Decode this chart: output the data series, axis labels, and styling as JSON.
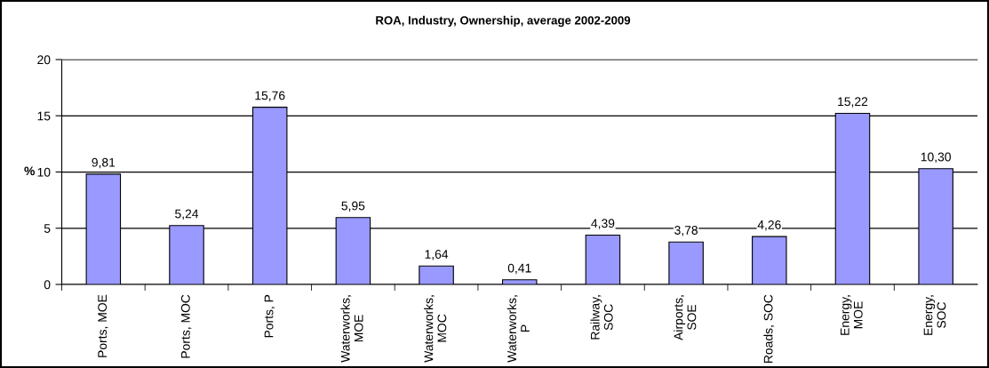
{
  "chart_data": {
    "type": "bar",
    "title": "ROA, Industry, Ownership, average 2002-2009",
    "ylabel": "%",
    "categories": [
      "Ports, MOE",
      "Ports, MOC",
      "Ports, P",
      "Waterworks,\nMOE",
      "Waterworks,\nMOC",
      "Waterworks,\nP",
      "Railway,\nSOC",
      "Airports,\nSOE",
      "Roads, SOC",
      "Energy,\nMOE",
      "Energy,\nSOC"
    ],
    "values": [
      9.81,
      5.24,
      15.76,
      5.95,
      1.64,
      0.41,
      4.39,
      3.78,
      4.26,
      15.22,
      10.3
    ],
    "value_labels": [
      "9,81",
      "5,24",
      "15,76",
      "5,95",
      "1,64",
      "0,41",
      "4,39",
      "3,78",
      "4,26",
      "15,22",
      "10,30"
    ],
    "color": "#9999ff",
    "ylim": [
      0,
      20
    ],
    "yticks": [
      0,
      5,
      10,
      15,
      20
    ],
    "grid": "y"
  }
}
